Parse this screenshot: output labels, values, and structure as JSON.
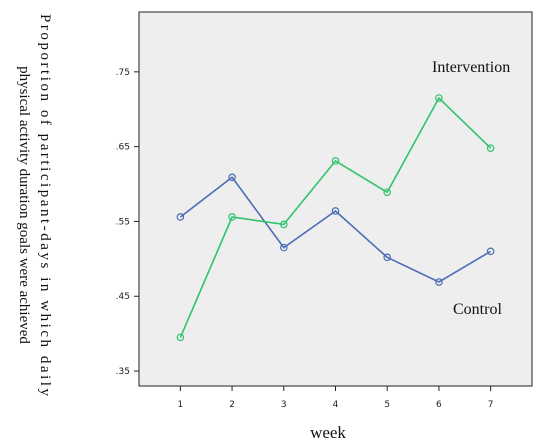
{
  "chart_data": {
    "type": "line",
    "title": "",
    "ylabel_lines": [
      "Proportion  of  participant-days  in  which  daily",
      "physical activity duration goals were achieved"
    ],
    "xlabel": "week",
    "x": [
      1,
      2,
      3,
      4,
      5,
      6,
      7
    ],
    "xtick_labels": [
      "1",
      "2",
      "3",
      "4",
      "5",
      "6",
      "7"
    ],
    "ylim": [
      0.33,
      0.83
    ],
    "yticks": [
      0.35,
      0.45,
      0.55,
      0.65,
      0.75
    ],
    "ytick_labels": [
      ".35",
      ".45",
      ".55",
      ".65",
      ".75"
    ],
    "grid": false,
    "background": "#eeeeee",
    "series": [
      {
        "name": "Control",
        "color": "#4a6db5",
        "values": [
          0.556,
          0.609,
          0.515,
          0.564,
          0.502,
          0.469,
          0.51
        ]
      },
      {
        "name": "Intervention",
        "color": "#2ec46b",
        "values": [
          0.395,
          0.556,
          0.546,
          0.631,
          0.589,
          0.715,
          0.648
        ]
      }
    ]
  }
}
